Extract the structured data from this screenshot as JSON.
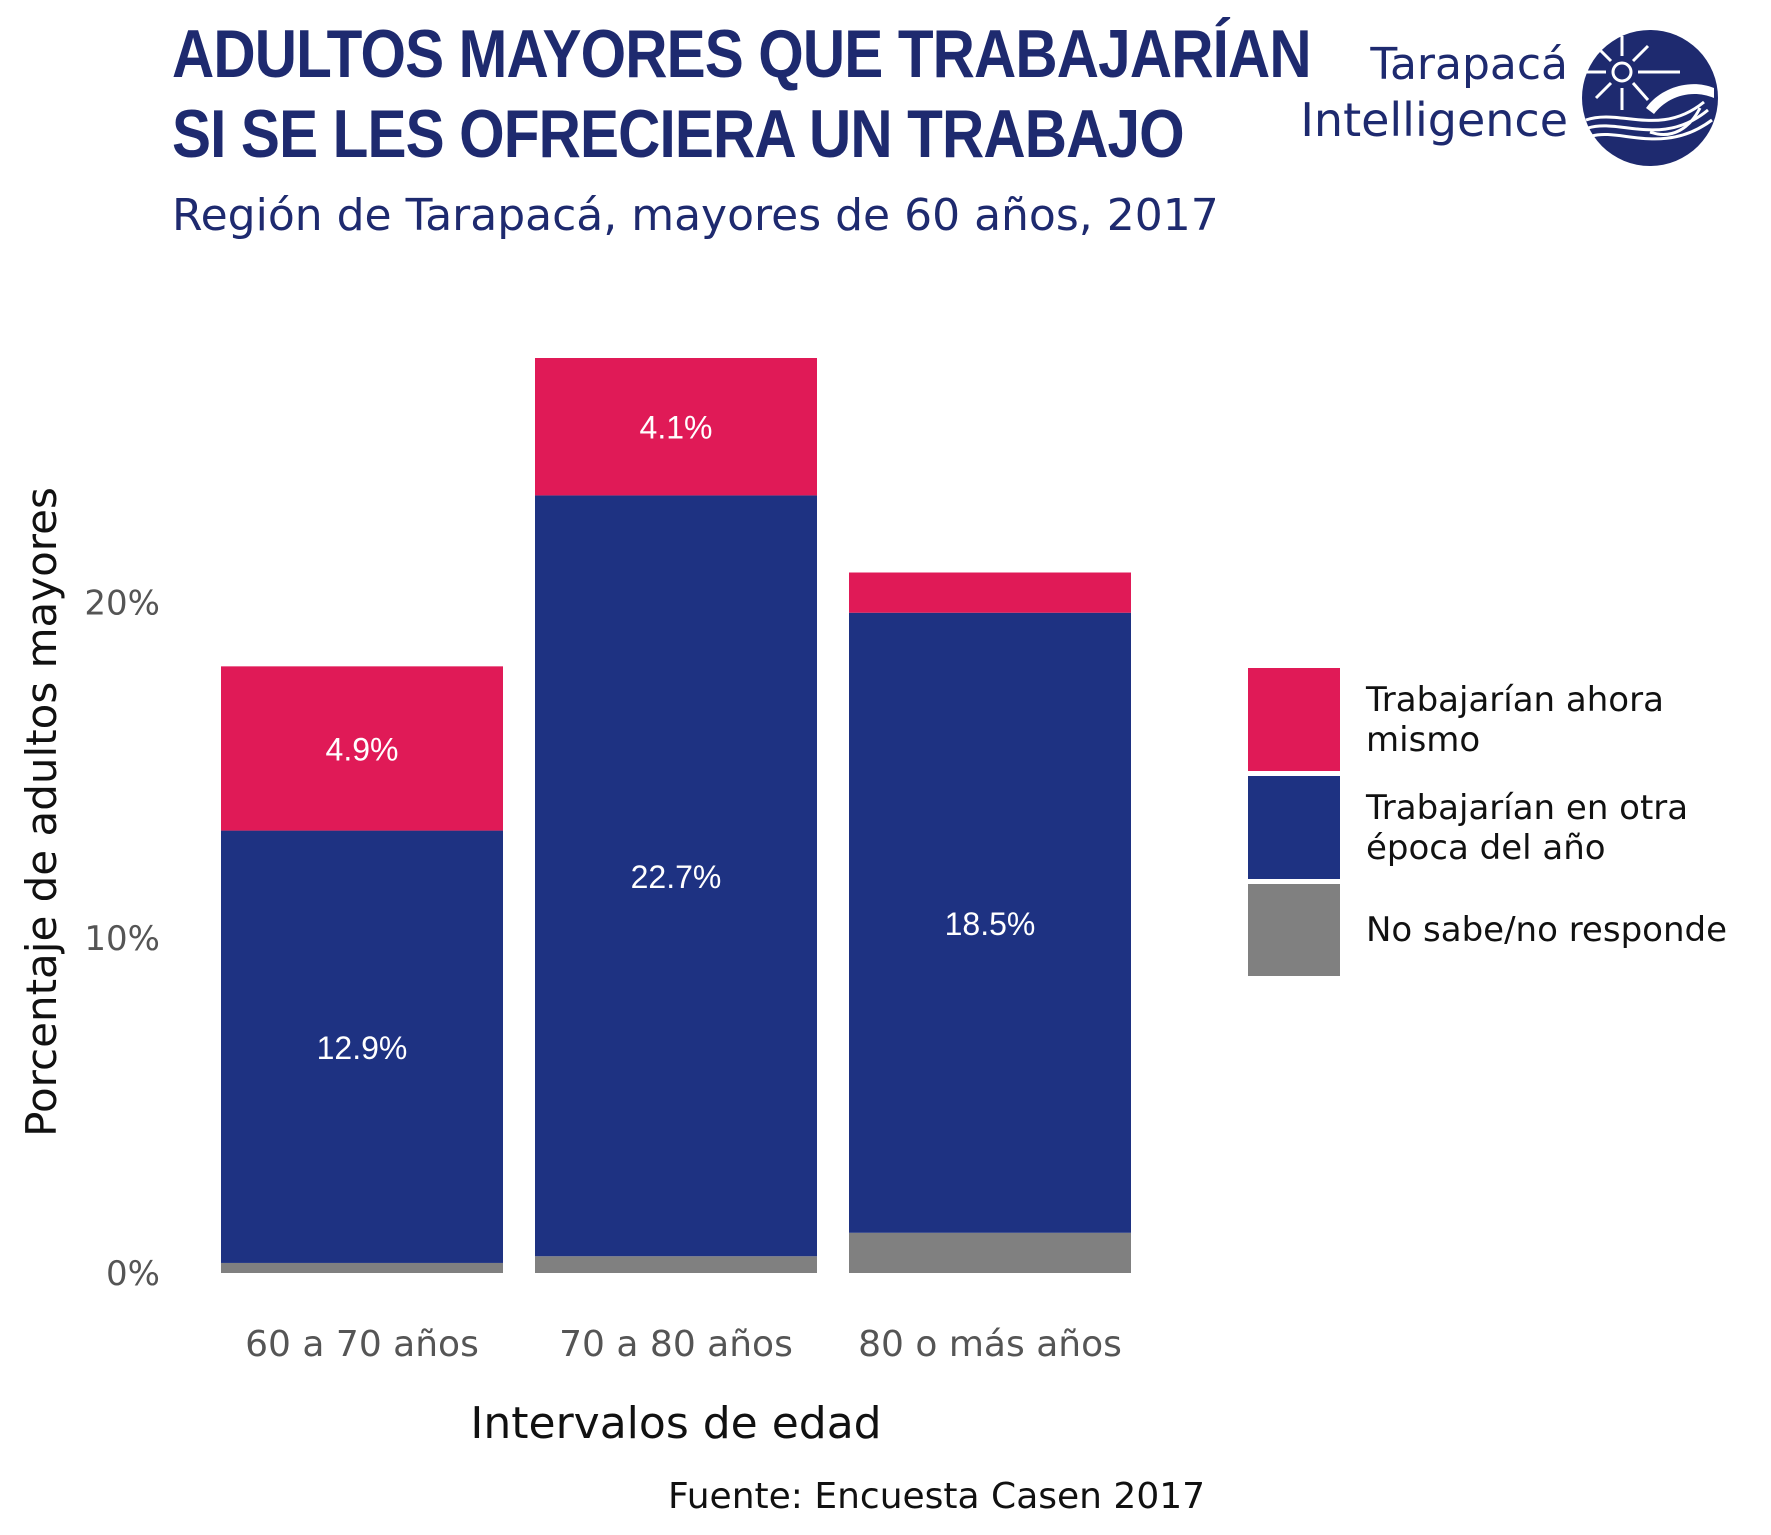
{
  "header": {
    "title_line1": "ADULTOS MAYORES QUE TRABAJARÍAN",
    "title_line2": "SI SE LES OFRECIERA UN TRABAJO",
    "subtitle": "Región de Tarapacá, mayores de 60 años, 2017"
  },
  "logo": {
    "line1": "Tarapacá",
    "line2": "Intelligence",
    "icon": "globe-sun-logo-icon"
  },
  "colors": {
    "now": "#e01a57",
    "other_season": "#1e3282",
    "no_answer": "#808080",
    "brand": "#1e2a6f"
  },
  "chart_data": {
    "type": "bar",
    "stacked": true,
    "categories": [
      "60 a 70 años",
      "70 a 80 años",
      "80 o más años"
    ],
    "series": [
      {
        "name": "No sabe/no responde",
        "values": [
          0.3,
          0.5,
          1.2
        ]
      },
      {
        "name": "Trabajarían en otra época del año",
        "values": [
          12.9,
          22.7,
          18.5
        ]
      },
      {
        "name": "Trabajarían ahora mismo",
        "values": [
          4.9,
          4.1,
          1.2
        ]
      }
    ],
    "data_labels": [
      [
        "",
        "",
        ""
      ],
      [
        "12.9%",
        "22.7%",
        "18.5%"
      ],
      [
        "4.9%",
        "4.1%",
        ""
      ]
    ],
    "yticks": [
      "0%",
      "10%",
      "20%"
    ],
    "ytick_values": [
      0,
      10,
      20
    ],
    "ylim": [
      0,
      27.3
    ],
    "xlabel": "Intervalos de edad",
    "ylabel": "Porcentaje de adultos mayores",
    "grid": false,
    "legend_position": "right",
    "legend_order": [
      "Trabajarían ahora mismo",
      "Trabajarían en otra época del año",
      "No sabe/no responde"
    ]
  },
  "legend": {
    "items": [
      {
        "label_line1": "Trabajarían ahora",
        "label_line2": "mismo"
      },
      {
        "label_line1": "Trabajarían en otra",
        "label_line2": "época del año"
      },
      {
        "label_line1": "No sabe/no responde",
        "label_line2": ""
      }
    ]
  },
  "footer": {
    "source": "Fuente: Encuesta Casen 2017"
  }
}
